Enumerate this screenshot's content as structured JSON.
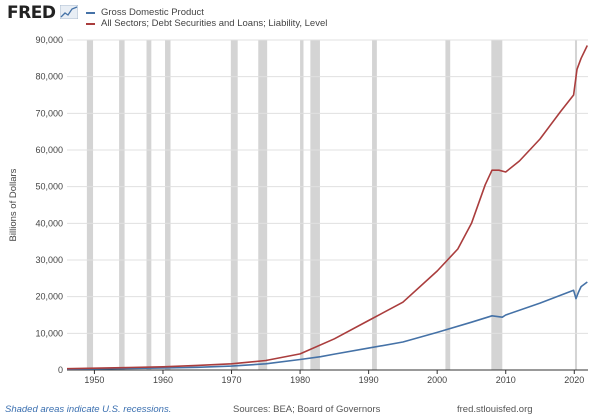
{
  "header": {
    "logo_text": "FRED"
  },
  "legend": [
    {
      "label": "Gross Domestic Product",
      "color": "#4572a7"
    },
    {
      "label": "All Sectors; Debt Securities and Loans; Liability, Level",
      "color": "#aa3d3d"
    }
  ],
  "footer": {
    "recession_note": "Shaded areas indicate U.S. recessions.",
    "sources": "Sources: BEA; Board of Governors",
    "site": "fred.stlouisfed.org"
  },
  "chart_data": {
    "type": "line",
    "ylabel": "Billions of Dollars",
    "ylim": [
      0,
      90000
    ],
    "xlim": [
      1946,
      2022
    ],
    "x_ticks": [
      "1950",
      "1960",
      "1970",
      "1980",
      "1990",
      "2000",
      "2010",
      "2020"
    ],
    "y_ticks": [
      "0",
      "10,000",
      "20,000",
      "30,000",
      "40,000",
      "50,000",
      "60,000",
      "70,000",
      "80,000",
      "90,000"
    ],
    "grid": true,
    "recessions": [
      [
        1948.9,
        1949.8
      ],
      [
        1953.6,
        1954.4
      ],
      [
        1957.6,
        1958.3
      ],
      [
        1960.3,
        1961.1
      ],
      [
        1969.9,
        1970.9
      ],
      [
        1973.9,
        1975.2
      ],
      [
        1980.0,
        1980.5
      ],
      [
        1981.5,
        1982.9
      ],
      [
        1990.5,
        1991.2
      ],
      [
        2001.2,
        2001.9
      ],
      [
        2007.9,
        2009.5
      ],
      [
        2020.1,
        2020.4
      ]
    ],
    "series": [
      {
        "name": "Gross Domestic Product",
        "color": "#4572a7",
        "x": [
          1946,
          1950,
          1955,
          1960,
          1965,
          1970,
          1975,
          1980,
          1983,
          1985,
          1990,
          1995,
          2000,
          2005,
          2008,
          2009.5,
          2010,
          2015,
          2019.9,
          2020.25,
          2020.6,
          2021,
          2021.9
        ],
        "y": [
          228,
          300,
          427,
          542,
          743,
          1073,
          1685,
          2857,
          3635,
          4339,
          5963,
          7640,
          10250,
          13040,
          14770,
          14400,
          14990,
          18240,
          21730,
          19480,
          21170,
          22740,
          23990
        ]
      },
      {
        "name": "All Sectors; Debt Securities and Loans; Liability, Level",
        "color": "#aa3d3d",
        "x": [
          1946,
          1950,
          1955,
          1960,
          1965,
          1970,
          1975,
          1980,
          1985,
          1990,
          1995,
          2000,
          2003,
          2005,
          2007,
          2008,
          2009,
          2010,
          2012,
          2015,
          2018,
          2019.9,
          2020.4,
          2021,
          2021.9
        ],
        "y": [
          350,
          480,
          680,
          880,
          1250,
          1700,
          2600,
          4400,
          8500,
          13500,
          18500,
          27000,
          33000,
          40000,
          50500,
          54500,
          54500,
          54000,
          57000,
          63000,
          70500,
          75000,
          82000,
          85000,
          88500
        ]
      }
    ]
  }
}
